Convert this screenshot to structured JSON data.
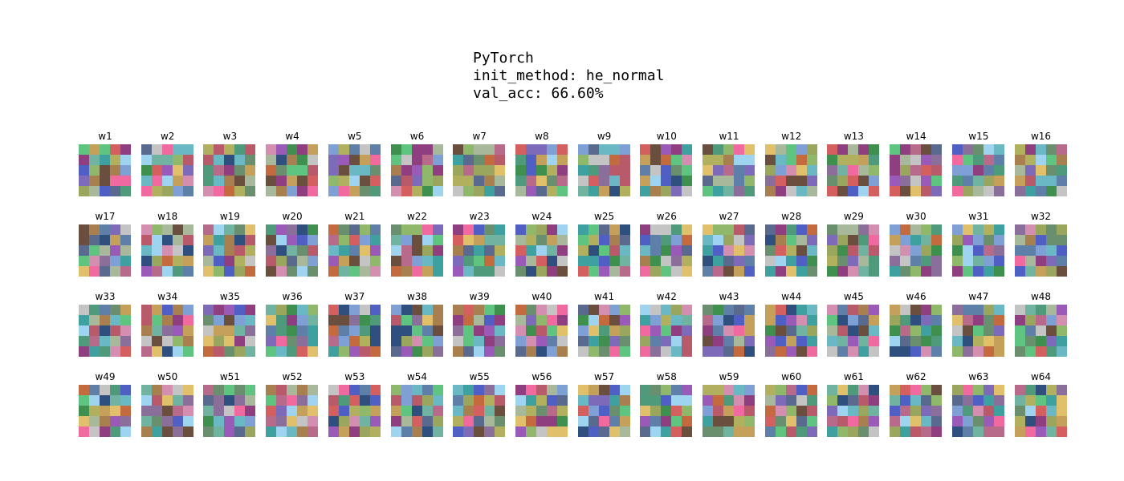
{
  "chart_data": {
    "type": "heatmap",
    "title_lines": [
      "PyTorch",
      "init_method: he_normal",
      "val_acc: 66.60%"
    ],
    "grid": {
      "rows": 4,
      "cols": 16,
      "kernel_size": 5
    },
    "filter_labels": [
      "w1",
      "w2",
      "w3",
      "w4",
      "w5",
      "w6",
      "w7",
      "w8",
      "w9",
      "w10",
      "w11",
      "w12",
      "w13",
      "w14",
      "w15",
      "w16",
      "w17",
      "w18",
      "w19",
      "w20",
      "w21",
      "w22",
      "w23",
      "w24",
      "w25",
      "w26",
      "w27",
      "w28",
      "w29",
      "w30",
      "w31",
      "w32",
      "w33",
      "w34",
      "w35",
      "w36",
      "w37",
      "w38",
      "w39",
      "w40",
      "w41",
      "w42",
      "w43",
      "w44",
      "w45",
      "w46",
      "w47",
      "w48",
      "w49",
      "w50",
      "w51",
      "w52",
      "w53",
      "w54",
      "w55",
      "w56",
      "w57",
      "w58",
      "w59",
      "w60",
      "w61",
      "w62",
      "w63",
      "w64"
    ],
    "palette": [
      "#6a8f6e",
      "#8a6f9a",
      "#5d7fa8",
      "#9aa65d",
      "#b86a8a",
      "#6fb3a0",
      "#a87f4f",
      "#7d6ab8",
      "#4f9a7a",
      "#c4a05a",
      "#8fb86a",
      "#5a6a8f",
      "#b85a6a",
      "#6ab8c4",
      "#9a5ab8",
      "#a8b89a",
      "#3f8f4f",
      "#d48fb0",
      "#7fa0d4",
      "#c46a3f",
      "#5fc47f",
      "#8f3f7f",
      "#b0b05f",
      "#4f5fc4",
      "#e0c06a",
      "#6a4f3f",
      "#9fd4f0",
      "#f06a9f",
      "#3fa0a0",
      "#c4c4c4",
      "#2f4f7f",
      "#d45f5f"
    ]
  }
}
